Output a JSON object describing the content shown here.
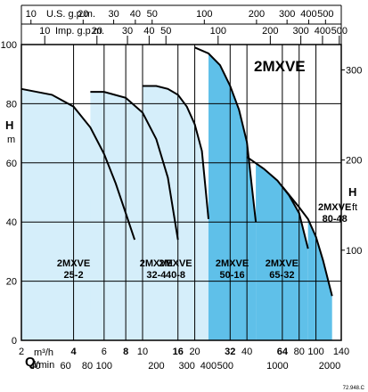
{
  "chart_data": {
    "type": "area",
    "title": "2MXVE",
    "footnote": "72.948.C",
    "x_axis": {
      "scale": "log",
      "range": [
        2,
        140
      ],
      "q_label": "Q",
      "unit_primary": "m³/h",
      "unit_secondary": "l/min",
      "ticks_m3h": [
        2,
        4,
        6,
        8,
        10,
        16,
        20,
        32,
        40,
        64,
        80,
        100,
        140
      ],
      "bold_ticks_m3h": [
        4,
        8,
        16,
        32,
        64
      ],
      "ticks_lmin": [
        40,
        60,
        80,
        100,
        200,
        300,
        400,
        500,
        1000,
        2000
      ]
    },
    "top_axes": [
      {
        "label": "U.S. g.p.m.",
        "ticks": [
          10,
          20,
          30,
          40,
          50,
          100,
          200,
          300,
          400,
          500
        ]
      },
      {
        "label": "Imp. g.p.m.",
        "ticks": [
          10,
          20,
          30,
          40,
          50,
          100,
          200,
          300,
          400,
          500
        ]
      }
    ],
    "y_axis_left": {
      "title": "H",
      "unit": "m",
      "range": [
        0,
        100
      ],
      "ticks": [
        0,
        20,
        40,
        60,
        80,
        100
      ]
    },
    "y_axis_right": {
      "title": "H",
      "unit": "ft",
      "range": [
        0,
        328
      ],
      "ticks": [
        100,
        200,
        300
      ]
    },
    "grid": true,
    "series": [
      {
        "name": "2MXVE 25-2",
        "label_lines": [
          "2MXVE",
          "25-2"
        ],
        "color": "#d5eefa",
        "x_start": 2,
        "x_end": 16,
        "curve_end": 9,
        "points": [
          [
            2,
            85
          ],
          [
            3,
            83
          ],
          [
            4,
            79
          ],
          [
            5,
            72
          ],
          [
            6,
            63
          ],
          [
            7,
            53
          ],
          [
            8,
            43
          ],
          [
            9,
            34
          ]
        ]
      },
      {
        "name": "2MXVE 32-4",
        "label_lines": [
          "2MXVE",
          "32-4"
        ],
        "color": "#d5eefa",
        "x_start": 5,
        "x_end": 24,
        "curve_end": 16,
        "points": [
          [
            5,
            84
          ],
          [
            6,
            84
          ],
          [
            8,
            82
          ],
          [
            10,
            77
          ],
          [
            12,
            68
          ],
          [
            14,
            55
          ],
          [
            16,
            34
          ]
        ]
      },
      {
        "name": "2MXVE 40-8",
        "label_lines": [
          "2MXVE",
          "40-8"
        ],
        "color": "#d5eefa",
        "x_start": 10,
        "x_end": 24,
        "curve_end": 24,
        "points": [
          [
            10,
            86
          ],
          [
            12,
            86
          ],
          [
            14,
            85
          ],
          [
            16,
            83
          ],
          [
            18,
            79
          ],
          [
            20,
            73
          ],
          [
            22,
            64
          ],
          [
            24,
            41
          ]
        ]
      },
      {
        "name": "2MXVE 50-16",
        "label_lines": [
          "2MXVE",
          "50-16"
        ],
        "color": "#5fc0e9",
        "x_start": 24,
        "x_end": 45,
        "curve_end": 45,
        "points": [
          [
            20,
            99
          ],
          [
            24,
            97
          ],
          [
            28,
            93
          ],
          [
            32,
            86
          ],
          [
            36,
            78
          ],
          [
            40,
            67
          ],
          [
            45,
            40
          ]
        ]
      },
      {
        "name": "2MXVE 65-32",
        "label_lines": [
          "2MXVE",
          "65-32"
        ],
        "color": "#5fc0e9",
        "x_start": 45,
        "x_end": 90,
        "curve_end": 90,
        "points": [
          [
            40,
            62
          ],
          [
            50,
            58
          ],
          [
            60,
            54
          ],
          [
            70,
            49
          ],
          [
            80,
            43
          ],
          [
            90,
            31
          ]
        ]
      },
      {
        "name": "2MXVE 80-48",
        "label_lines": [
          "2MXVE",
          "80-48"
        ],
        "color": "#5fc0e9",
        "x_start": 90,
        "x_end": 124,
        "curve_end": 124,
        "points": [
          [
            64,
            52
          ],
          [
            80,
            45
          ],
          [
            90,
            41
          ],
          [
            100,
            35
          ],
          [
            110,
            27
          ],
          [
            124,
            15
          ]
        ]
      }
    ]
  }
}
